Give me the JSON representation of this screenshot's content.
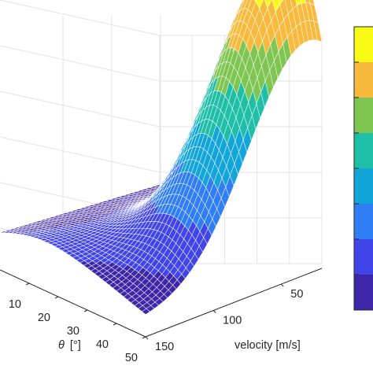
{
  "chart_data": {
    "type": "surface",
    "title": "",
    "theta_axis": {
      "label_symbol": "θ",
      "label_unit": "[°]",
      "ticks": [
        10,
        20,
        30,
        40,
        50
      ],
      "range": [
        0,
        50
      ]
    },
    "velocity_axis": {
      "label": "velocity [m/s]",
      "ticks": [
        50,
        100,
        150
      ],
      "range": [
        20,
        150
      ]
    },
    "z_axis": {
      "tick_labels_visible": false
    },
    "grid": true,
    "colorbar": {
      "placement": "right",
      "levels": 8,
      "colors": [
        "#3e26a8",
        "#4145e8",
        "#2f7ef5",
        "#12a5d9",
        "#1ebea7",
        "#7fc552",
        "#f8ba3c",
        "#f9fb15"
      ]
    }
  }
}
